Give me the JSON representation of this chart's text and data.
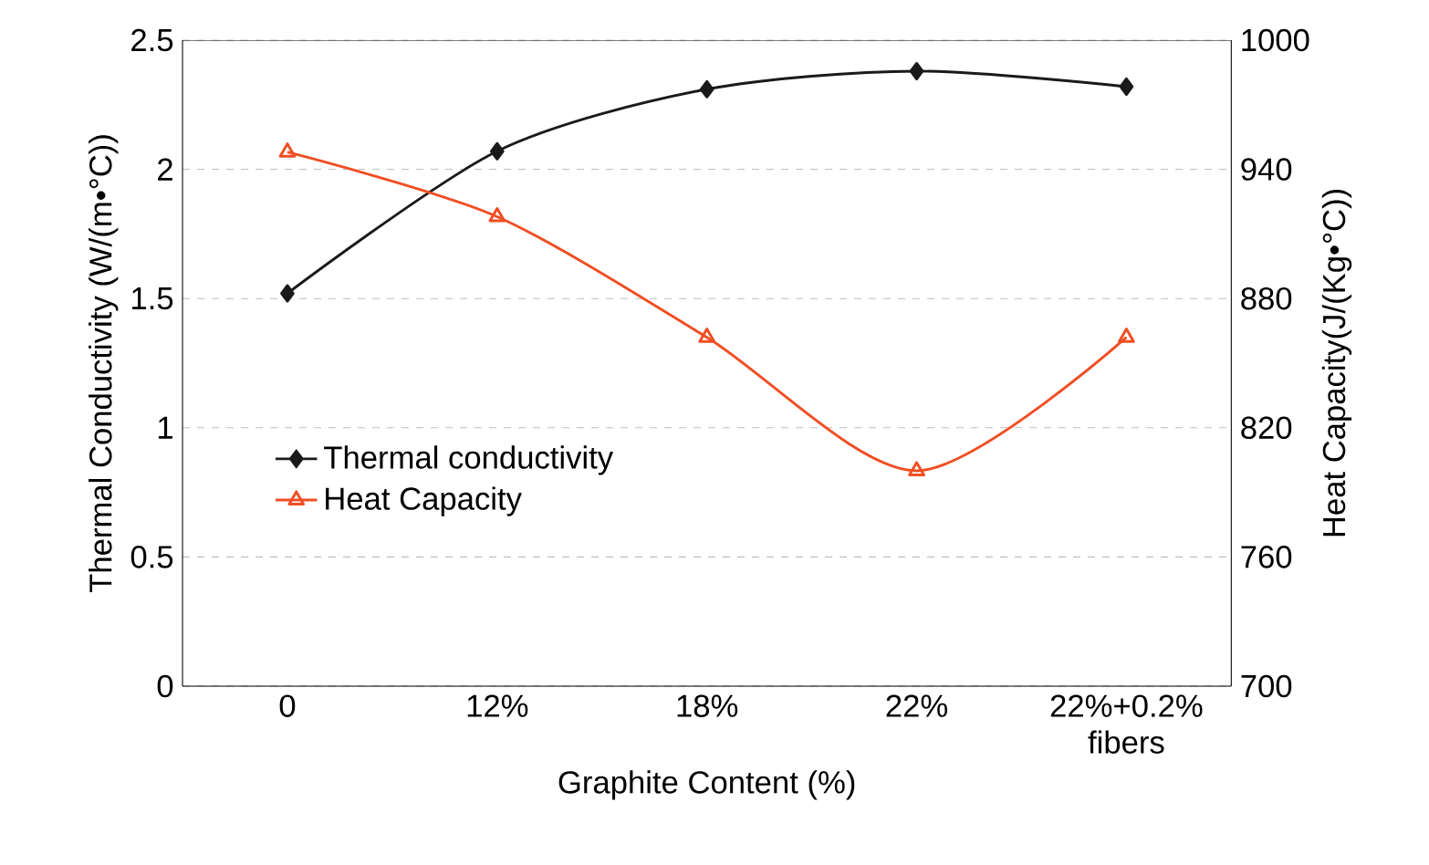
{
  "chart_data": {
    "type": "line",
    "xlabel": "Graphite Content (%)",
    "ylabel": "Thermal Conductivity (W/(m•°C))",
    "y2label": "Heat Capacity(J/(Kg•°C))",
    "categories": [
      "0",
      "12%",
      "18%",
      "22%",
      "22%+0.2% fibers"
    ],
    "series": [
      {
        "name": "Thermal conductivity",
        "color": "#1a1a1a",
        "marker": "diamond",
        "values": [
          1.52,
          2.07,
          2.31,
          2.38,
          2.32
        ]
      },
      {
        "name": "Heat Capacity",
        "color": "#f04e23",
        "marker": "triangle",
        "axis": "y2",
        "values": [
          948,
          918,
          862,
          800,
          862
        ]
      }
    ],
    "ylim": [
      0,
      2.5
    ],
    "yticks": [
      0,
      0.5,
      1,
      1.5,
      2,
      2.5
    ],
    "y2lim": [
      700,
      1000
    ],
    "y2ticks": [
      700,
      760,
      820,
      880,
      940,
      1000
    ],
    "grid": "y",
    "legend": "center left"
  }
}
